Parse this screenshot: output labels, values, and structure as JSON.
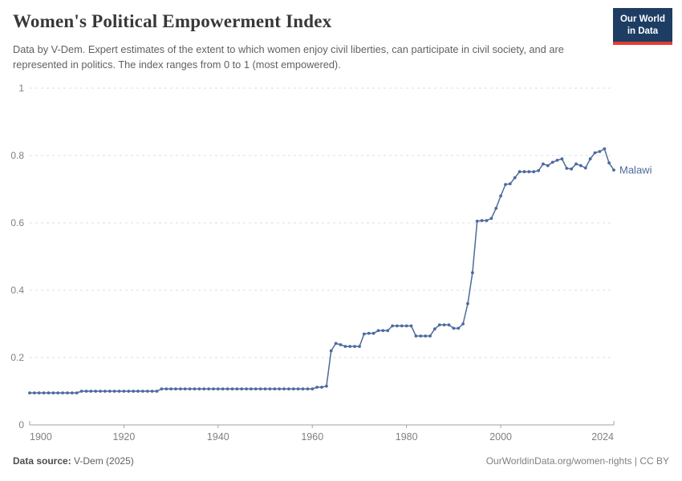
{
  "header": {
    "title": "Women's Political Empowerment Index",
    "subtitle": "Data by V-Dem. Expert estimates of the extent to which women enjoy civil liberties, can participate in civil society, and are represented in politics. The index ranges from 0 to 1 (most empowered).",
    "logo": {
      "line1": "Our World",
      "line2": "in Data",
      "bg_color": "#1d3d63",
      "accent_color": "#e23e32"
    }
  },
  "chart_data": {
    "type": "line",
    "title": "Women's Political Empowerment Index",
    "xlabel": "",
    "ylabel": "",
    "xlim": [
      1900,
      2024
    ],
    "ylim": [
      0,
      1
    ],
    "xticks": [
      1900,
      1920,
      1940,
      1960,
      1980,
      2000,
      2024
    ],
    "yticks": [
      0,
      0.2,
      0.4,
      0.6,
      0.8,
      1
    ],
    "ytick_labels": [
      "0",
      "0.2",
      "0.4",
      "0.6",
      "0.8",
      "1"
    ],
    "grid": "horizontal-dashed",
    "markers": true,
    "legend_position": "end-of-line-label",
    "series": [
      {
        "name": "Malawi",
        "color": "#4c6a9c",
        "x": [
          1900,
          1901,
          1902,
          1903,
          1904,
          1905,
          1906,
          1907,
          1908,
          1909,
          1910,
          1911,
          1912,
          1913,
          1914,
          1915,
          1916,
          1917,
          1918,
          1919,
          1920,
          1921,
          1922,
          1923,
          1924,
          1925,
          1926,
          1927,
          1928,
          1929,
          1930,
          1931,
          1932,
          1933,
          1934,
          1935,
          1936,
          1937,
          1938,
          1939,
          1940,
          1941,
          1942,
          1943,
          1944,
          1945,
          1946,
          1947,
          1948,
          1949,
          1950,
          1951,
          1952,
          1953,
          1954,
          1955,
          1956,
          1957,
          1958,
          1959,
          1960,
          1961,
          1962,
          1963,
          1964,
          1965,
          1966,
          1967,
          1968,
          1969,
          1970,
          1971,
          1972,
          1973,
          1974,
          1975,
          1976,
          1977,
          1978,
          1979,
          1980,
          1981,
          1982,
          1983,
          1984,
          1985,
          1986,
          1987,
          1988,
          1989,
          1990,
          1991,
          1992,
          1993,
          1994,
          1995,
          1996,
          1997,
          1998,
          1999,
          2000,
          2001,
          2002,
          2003,
          2004,
          2005,
          2006,
          2007,
          2008,
          2009,
          2010,
          2011,
          2012,
          2013,
          2014,
          2015,
          2016,
          2017,
          2018,
          2019,
          2020,
          2021,
          2022,
          2023,
          2024
        ],
        "y": [
          0.095,
          0.095,
          0.095,
          0.095,
          0.095,
          0.095,
          0.095,
          0.095,
          0.095,
          0.095,
          0.095,
          0.1,
          0.1,
          0.1,
          0.1,
          0.1,
          0.1,
          0.1,
          0.1,
          0.1,
          0.1,
          0.1,
          0.1,
          0.1,
          0.1,
          0.1,
          0.1,
          0.1,
          0.107,
          0.107,
          0.107,
          0.107,
          0.107,
          0.107,
          0.107,
          0.107,
          0.107,
          0.107,
          0.107,
          0.107,
          0.107,
          0.107,
          0.107,
          0.107,
          0.107,
          0.107,
          0.107,
          0.107,
          0.107,
          0.107,
          0.107,
          0.107,
          0.107,
          0.107,
          0.107,
          0.107,
          0.107,
          0.107,
          0.107,
          0.107,
          0.107,
          0.112,
          0.112,
          0.115,
          0.22,
          0.242,
          0.238,
          0.233,
          0.233,
          0.233,
          0.233,
          0.27,
          0.272,
          0.272,
          0.28,
          0.28,
          0.28,
          0.294,
          0.294,
          0.294,
          0.294,
          0.294,
          0.264,
          0.264,
          0.264,
          0.264,
          0.285,
          0.297,
          0.297,
          0.297,
          0.287,
          0.287,
          0.3,
          0.36,
          0.452,
          0.605,
          0.607,
          0.607,
          0.613,
          0.643,
          0.68,
          0.714,
          0.716,
          0.734,
          0.752,
          0.752,
          0.752,
          0.752,
          0.755,
          0.775,
          0.77,
          0.78,
          0.786,
          0.79,
          0.762,
          0.76,
          0.775,
          0.77,
          0.763,
          0.79,
          0.808,
          0.812,
          0.82,
          0.778,
          0.757
        ]
      }
    ]
  },
  "footer": {
    "source_label": "Data source:",
    "source_value": " V-Dem (2025)",
    "credit": "OurWorldinData.org/women-rights | CC BY"
  }
}
